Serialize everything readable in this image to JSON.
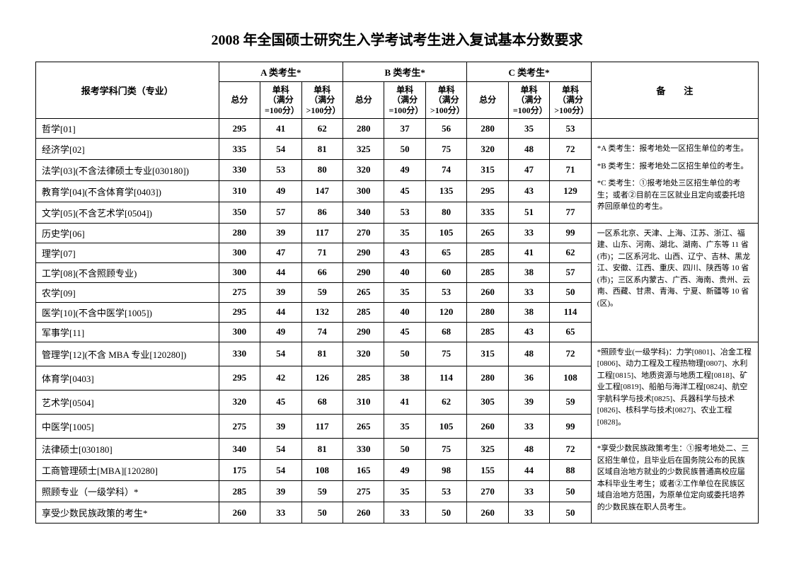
{
  "title": "2008 年全国硕士研究生入学考试考生进入复试基本分数要求",
  "headers": {
    "major": "报考学科门类（专业）",
    "groupA": "A 类考生*",
    "groupB": "B 类考生*",
    "groupC": "C 类考生*",
    "notes": "备　　注",
    "total": "总分",
    "sub100": "单科（满分=100分）",
    "sub_gt100": "单科（满分>100分）"
  },
  "rows": [
    {
      "major": "哲学[01]",
      "a": [
        295,
        41,
        62
      ],
      "b": [
        280,
        37,
        56
      ],
      "c": [
        280,
        35,
        53
      ]
    },
    {
      "major": "经济学[02]",
      "a": [
        335,
        54,
        81
      ],
      "b": [
        325,
        50,
        75
      ],
      "c": [
        320,
        48,
        72
      ]
    },
    {
      "major": "法学[03](不含法律硕士专业[030180])",
      "a": [
        330,
        53,
        80
      ],
      "b": [
        320,
        49,
        74
      ],
      "c": [
        315,
        47,
        71
      ]
    },
    {
      "major": "教育学[04](不含体育学[0403])",
      "a": [
        310,
        49,
        147
      ],
      "b": [
        300,
        45,
        135
      ],
      "c": [
        295,
        43,
        129
      ]
    },
    {
      "major": "文学[05](不含艺术学[0504])",
      "a": [
        350,
        57,
        86
      ],
      "b": [
        340,
        53,
        80
      ],
      "c": [
        335,
        51,
        77
      ]
    },
    {
      "major": "历史学[06]",
      "a": [
        280,
        39,
        117
      ],
      "b": [
        270,
        35,
        105
      ],
      "c": [
        265,
        33,
        99
      ]
    },
    {
      "major": "理学[07]",
      "a": [
        300,
        47,
        71
      ],
      "b": [
        290,
        43,
        65
      ],
      "c": [
        285,
        41,
        62
      ]
    },
    {
      "major": "工学[08](不含照顾专业)",
      "a": [
        300,
        44,
        66
      ],
      "b": [
        290,
        40,
        60
      ],
      "c": [
        285,
        38,
        57
      ]
    },
    {
      "major": "农学[09]",
      "a": [
        275,
        39,
        59
      ],
      "b": [
        265,
        35,
        53
      ],
      "c": [
        260,
        33,
        50
      ]
    },
    {
      "major": "医学[10](不含中医学[1005])",
      "a": [
        295,
        44,
        132
      ],
      "b": [
        285,
        40,
        120
      ],
      "c": [
        280,
        38,
        114
      ]
    },
    {
      "major": "军事学[11]",
      "a": [
        300,
        49,
        74
      ],
      "b": [
        290,
        45,
        68
      ],
      "c": [
        285,
        43,
        65
      ]
    },
    {
      "major": "管理学[12](不含 MBA 专业[120280])",
      "a": [
        330,
        54,
        81
      ],
      "b": [
        320,
        50,
        75
      ],
      "c": [
        315,
        48,
        72
      ]
    },
    {
      "major": "体育学[0403]",
      "a": [
        295,
        42,
        126
      ],
      "b": [
        285,
        38,
        114
      ],
      "c": [
        280,
        36,
        108
      ]
    },
    {
      "major": "艺术学[0504]",
      "a": [
        320,
        45,
        68
      ],
      "b": [
        310,
        41,
        62
      ],
      "c": [
        305,
        39,
        59
      ]
    },
    {
      "major": "中医学[1005]",
      "a": [
        275,
        39,
        117
      ],
      "b": [
        265,
        35,
        105
      ],
      "c": [
        260,
        33,
        99
      ]
    },
    {
      "major": "法律硕士[030180]",
      "a": [
        340,
        54,
        81
      ],
      "b": [
        330,
        50,
        75
      ],
      "c": [
        325,
        48,
        72
      ]
    },
    {
      "major": "工商管理硕士[MBA][120280]",
      "a": [
        175,
        54,
        108
      ],
      "b": [
        165,
        49,
        98
      ],
      "c": [
        155,
        44,
        88
      ]
    },
    {
      "major": "照顾专业（一级学科）*",
      "a": [
        285,
        39,
        59
      ],
      "b": [
        275,
        35,
        53
      ],
      "c": [
        270,
        33,
        50
      ]
    },
    {
      "major": "享受少数民族政策的考生*",
      "a": [
        260,
        33,
        50
      ],
      "b": [
        260,
        33,
        50
      ],
      "c": [
        260,
        33,
        50
      ]
    }
  ],
  "notes": {
    "p1": "*A 类考生：报考地处一区招生单位的考生。",
    "p2": "*B 类考生：报考地处二区招生单位的考生。",
    "p3": "*C 类考生：①报考地处三区招生单位的考生；或者②目前在三区就业且定向或委托培养回原单位的考生。",
    "p4": "一区系北京、天津、上海、江苏、浙江、福建、山东、河南、湖北、湖南、广东等 11 省(市)；二区系河北、山西、辽宁、吉林、黑龙江、安徽、江西、重庆、四川、陕西等 10 省(市)；三区系内蒙古、广西、海南、贵州、云南、西藏、甘肃、青海、宁夏、新疆等 10 省(区)。",
    "p5": "*照顾专业(一级学科)：力学[0801]、冶金工程[0806]、动力工程及工程热物理[0807]、水利工程[0815]、地质资源与地质工程[0818]、矿业工程[0819]、船舶与海洋工程[0824]、航空宇航科学与技术[0825]、兵器科学与技术[0826]、核科学与技术[0827]、农业工程[0828]。",
    "p6": "*享受少数民族政策考生：①报考地处二、三区招生单位，且毕业后在国务院公布的民族区域自治地方就业的少数民族普通高校应届本科毕业生考生；或者②工作单位在民族区域自治地方范围，为原单位定向或委托培养的少数民族在职人员考生。"
  },
  "noteGroups": [
    {
      "start": 0,
      "span": 1,
      "keys": []
    },
    {
      "start": 1,
      "span": 4,
      "keys": [
        "p1",
        "p2",
        "p3"
      ]
    },
    {
      "start": 5,
      "span": 6,
      "keys": [
        "p4"
      ]
    },
    {
      "start": 11,
      "span": 4,
      "keys": [
        "p5"
      ]
    },
    {
      "start": 15,
      "span": 4,
      "keys": [
        "p6"
      ]
    }
  ],
  "style": {
    "title_fontsize": 20,
    "body_fontsize": 13,
    "notes_fontsize": 11,
    "border_color": "#000000",
    "background_color": "#ffffff"
  }
}
